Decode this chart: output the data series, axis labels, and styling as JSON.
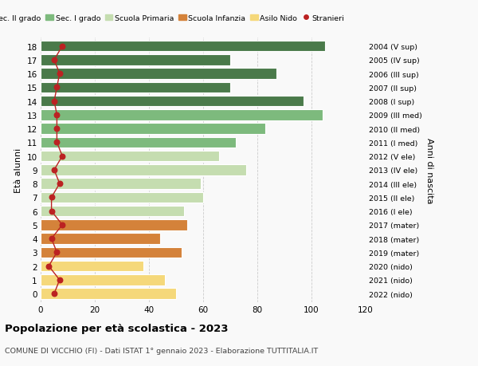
{
  "ages": [
    18,
    17,
    16,
    15,
    14,
    13,
    12,
    11,
    10,
    9,
    8,
    7,
    6,
    5,
    4,
    3,
    2,
    1,
    0
  ],
  "bar_values": [
    105,
    70,
    87,
    70,
    97,
    104,
    83,
    72,
    66,
    76,
    59,
    60,
    53,
    54,
    44,
    52,
    38,
    46,
    50
  ],
  "bar_colors": [
    "#4a7a4a",
    "#4a7a4a",
    "#4a7a4a",
    "#4a7a4a",
    "#4a7a4a",
    "#7dba7d",
    "#7dba7d",
    "#7dba7d",
    "#c5ddb0",
    "#c5ddb0",
    "#c5ddb0",
    "#c5ddb0",
    "#c5ddb0",
    "#d4823a",
    "#d4823a",
    "#d4823a",
    "#f5d87a",
    "#f5d87a",
    "#f5d87a"
  ],
  "stranieri": [
    8,
    5,
    7,
    6,
    5,
    6,
    6,
    6,
    8,
    5,
    7,
    4,
    4,
    8,
    4,
    6,
    3,
    7,
    5
  ],
  "right_labels": [
    "2004 (V sup)",
    "2005 (IV sup)",
    "2006 (III sup)",
    "2007 (II sup)",
    "2008 (I sup)",
    "2009 (III med)",
    "2010 (II med)",
    "2011 (I med)",
    "2012 (V ele)",
    "2013 (IV ele)",
    "2014 (III ele)",
    "2015 (II ele)",
    "2016 (I ele)",
    "2017 (mater)",
    "2018 (mater)",
    "2019 (mater)",
    "2020 (nido)",
    "2021 (nido)",
    "2022 (nido)"
  ],
  "legend_labels": [
    "Sec. II grado",
    "Sec. I grado",
    "Scuola Primaria",
    "Scuola Infanzia",
    "Asilo Nido",
    "Stranieri"
  ],
  "legend_colors": [
    "#4a7a4a",
    "#7dba7d",
    "#c5ddb0",
    "#d4823a",
    "#f5d87a",
    "#bb2222"
  ],
  "ylabel": "Età alunni",
  "right_ylabel": "Anni di nascita",
  "xlim": [
    0,
    120
  ],
  "xticks": [
    0,
    20,
    40,
    60,
    80,
    100,
    120
  ],
  "title": "Popolazione per età scolastica - 2023",
  "subtitle": "COMUNE DI VICCHIO (FI) - Dati ISTAT 1° gennaio 2023 - Elaborazione TUTTITALIA.IT",
  "bg_color": "#f9f9f9",
  "stranieri_color": "#bb2222"
}
